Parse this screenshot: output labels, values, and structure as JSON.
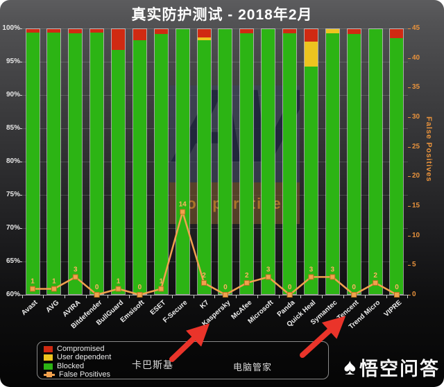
{
  "title": "真实防护测试 - 2018年2月",
  "chart_data": {
    "type": "bar",
    "stacked": true,
    "title": "真实防护测试 - 2018年2月",
    "categories": [
      "Avast",
      "AVG",
      "AVIRA",
      "Bitdefender",
      "BullGuard",
      "Emsisoft",
      "ESET",
      "F-Secure",
      "K7",
      "Kaspersky",
      "McAfee",
      "Microsoft",
      "Panda",
      "Quick Heal",
      "Symantec",
      "Tencent",
      "Trend Micro",
      "VIPRE"
    ],
    "series": [
      {
        "name": "Compromised",
        "color": "#d02a12",
        "values": [
          0.5,
          0.5,
          0.6,
          0.5,
          3.1,
          1.7,
          0.7,
          0,
          1.2,
          0,
          0.6,
          0,
          0.6,
          1.9,
          0,
          0.7,
          0,
          1.3
        ]
      },
      {
        "name": "User dependent",
        "color": "#edc41f",
        "values": [
          0,
          0,
          0,
          0,
          0,
          0,
          0,
          0,
          0.5,
          0,
          0,
          0,
          0,
          3.7,
          0.6,
          0,
          0,
          0
        ]
      },
      {
        "name": "Blocked",
        "color": "#2cb414",
        "values": [
          99.5,
          99.5,
          99.4,
          99.5,
          96.9,
          98.3,
          99.3,
          100,
          98.3,
          100,
          99.4,
          100,
          99.4,
          94.4,
          99.4,
          99.3,
          100,
          98.7
        ]
      }
    ],
    "line_series": {
      "name": "False Positives",
      "color": "#f2a14e",
      "label_color": "#ffb264",
      "values": [
        1,
        1,
        3,
        0,
        1,
        0,
        1,
        14,
        2,
        0,
        2,
        3,
        0,
        3,
        3,
        0,
        2,
        0
      ]
    },
    "y_left": {
      "min": 60,
      "max": 100,
      "ticks": [
        "100%",
        "95%",
        "90%",
        "85%",
        "80%",
        "75%",
        "70%",
        "65%",
        "60%"
      ]
    },
    "y_right": {
      "min": 0,
      "max": 45,
      "label": "False Positives",
      "ticks": [
        "45",
        "40",
        "35",
        "30",
        "25",
        "20",
        "15",
        "10",
        "5",
        "0"
      ]
    },
    "grid": true,
    "legend_position": "bottom-left"
  },
  "legend": {
    "items": [
      {
        "label": "Compromised",
        "color": "#d02a12",
        "type": "square"
      },
      {
        "label": "User dependent",
        "color": "#edc41f",
        "type": "square"
      },
      {
        "label": "Blocked",
        "color": "#2cb414",
        "type": "square"
      },
      {
        "label": "False Positives",
        "color": "#f2a14e",
        "type": "line-marker"
      }
    ]
  },
  "annotations": {
    "kaspersky_label": "卡巴斯基",
    "tencent_label": "电脑管家"
  },
  "watermark": {
    "av_text": "AV",
    "av_sub": "comparatives",
    "site_text": "悟空问答",
    "site_logo_glyph": "♠"
  },
  "colors": {
    "arrow_red": "#ea342a",
    "axis_orange": "#e8923c",
    "grid": "rgba(255,255,255,0.16)"
  }
}
